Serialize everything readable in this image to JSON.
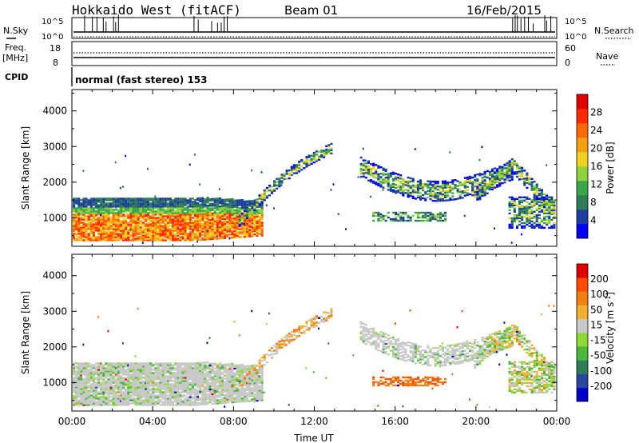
{
  "header": {
    "title": "Hokkaido West (fitACF)",
    "beam": "Beam 01",
    "date": "16/Feb/2015"
  },
  "status_panel": {
    "nsky_label": "N.Sky",
    "nsearch_label": "N.Search",
    "sky_ticks": [
      "10^5",
      "10^0"
    ],
    "search_ticks": [
      "10^5",
      "10^0"
    ],
    "freq_label_1": "Freq.",
    "freq_label_2": "[MHz]",
    "freq_ticks": [
      "18",
      "8"
    ],
    "nave_label": "Nave",
    "nave_ticks": [
      "60",
      "0"
    ],
    "cpid_label": "CPID",
    "cpid_value": "normal (fast stereo) 153"
  },
  "colors": {
    "power_scale": [
      "#0000ff",
      "#1f3fa0",
      "#2e7d57",
      "#3aa64a",
      "#8fd23c",
      "#f0d020",
      "#f0a010",
      "#ff6a00",
      "#ff2a00",
      "#e00000"
    ],
    "velocity_scale": [
      "#0000c8",
      "#2848a0",
      "#2e7d57",
      "#4ab83c",
      "#8fd838",
      "#c8c8c8",
      "#f0b030",
      "#f08010",
      "#ff4a00",
      "#e00000"
    ]
  },
  "chart_data": [
    {
      "type": "heatmap",
      "panel": "power",
      "ylabel": "Slant Range [km]",
      "yticks": [
        "1000",
        "2000",
        "3000",
        "4000"
      ],
      "ylim": [
        200,
        4600
      ],
      "xlim": [
        0,
        24
      ],
      "colorbar_label": "Power [dB]",
      "colorbar_ticks": [
        "28",
        "24",
        "20",
        "16",
        "12",
        "8",
        "4"
      ],
      "colorbar_range": [
        0,
        30
      ]
    },
    {
      "type": "heatmap",
      "panel": "velocity",
      "ylabel": "Slant Range [km]",
      "yticks": [
        "1000",
        "2000",
        "3000",
        "4000"
      ],
      "ylim": [
        200,
        4600
      ],
      "xlim": [
        0,
        24
      ],
      "xticks": [
        "00:00",
        "04:00",
        "08:00",
        "12:00",
        "16:00",
        "20:00",
        "00:00"
      ],
      "xlabel": "Time UT",
      "colorbar_label_main": "Velocity [m s",
      "colorbar_label_sup": "-1",
      "colorbar_label_end": "]",
      "colorbar_ticks": [
        "200",
        "100",
        "50",
        "15",
        "-15",
        "-50",
        "-100",
        "-200"
      ]
    }
  ]
}
